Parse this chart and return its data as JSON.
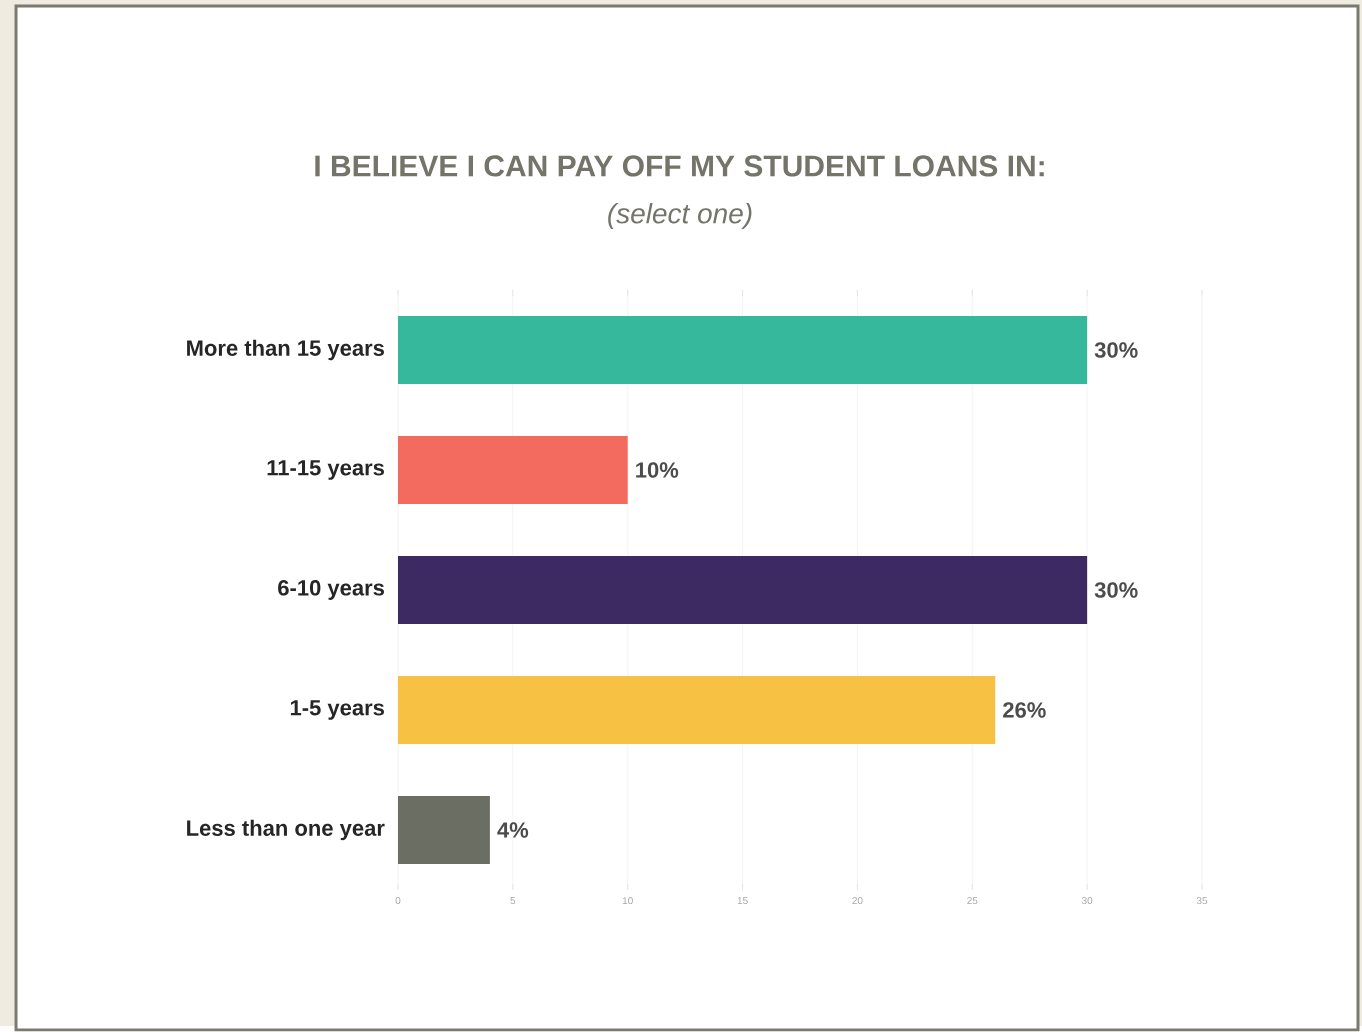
{
  "chart_data": {
    "type": "bar",
    "orientation": "horizontal",
    "title": "I BELIEVE I CAN PAY OFF MY STUDENT LOANS IN:",
    "subtitle": "(select one)",
    "categories": [
      "More than 15 years",
      "11-15 years",
      "6-10 years",
      "1-5 years",
      "Less than one year"
    ],
    "values": [
      30,
      10,
      30,
      26,
      4
    ],
    "colors": [
      "#35b89b",
      "#f36b5f",
      "#3d2a63",
      "#f7c244",
      "#6b6e63"
    ],
    "value_labels": [
      "30%",
      "10%",
      "30%",
      "26%",
      "4%"
    ],
    "xlim": [
      0,
      35
    ],
    "xticks": [
      0,
      5,
      10,
      15,
      20,
      25,
      30,
      35
    ],
    "grid": "x"
  }
}
